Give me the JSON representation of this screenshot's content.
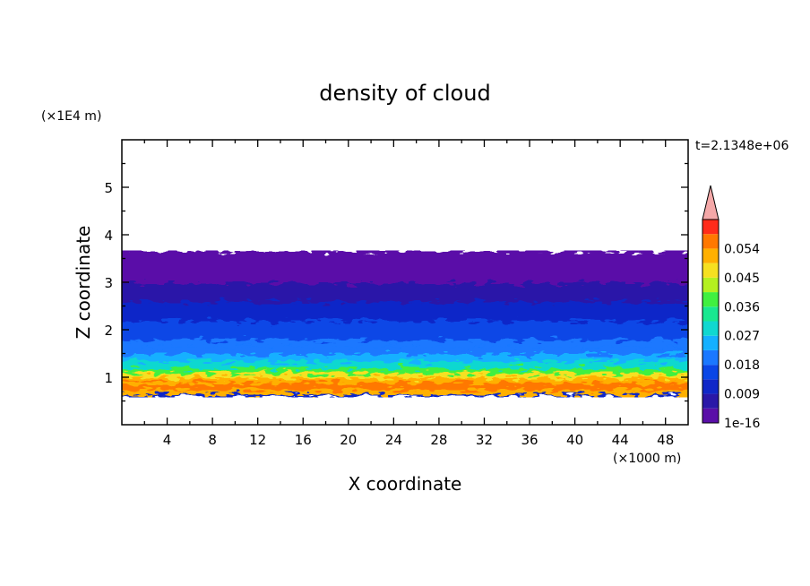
{
  "chart_data": {
    "type": "heatmap",
    "title": "density of cloud",
    "xlabel": "X coordinate",
    "ylabel": "Z coordinate",
    "x_unit": "(×1000 m)",
    "y_unit": "(×1E4 m)",
    "time_label": "t=2.1348e+06",
    "xlim": [
      0,
      50
    ],
    "ylim": [
      0,
      6
    ],
    "x_ticks": [
      4,
      8,
      12,
      16,
      20,
      24,
      28,
      32,
      36,
      40,
      44,
      48
    ],
    "y_ticks": [
      1,
      2,
      3,
      4,
      5
    ],
    "colorbar": {
      "levels": [
        1e-16,
        0.0045,
        0.009,
        0.0135,
        0.018,
        0.0225,
        0.027,
        0.0315,
        0.036,
        0.0405,
        0.045,
        0.0495,
        0.054,
        0.0585
      ],
      "labels": [
        "1e-16",
        "0.009",
        "0.018",
        "0.027",
        "0.036",
        "0.045",
        "0.054"
      ],
      "colors": [
        "#5a0fa8",
        "#2a18a8",
        "#1028c8",
        "#0a46e6",
        "#1a78ff",
        "#14b0ff",
        "#10d8d0",
        "#18e890",
        "#40f040",
        "#b4f020",
        "#f6e020",
        "#ffb000",
        "#ff7800",
        "#ff2c1a"
      ],
      "over_color": "#f4a8a8"
    },
    "vertical_profile": {
      "z": [
        0.6,
        0.65,
        0.75,
        0.9,
        1.0,
        1.1,
        1.2,
        1.35,
        1.5,
        1.65,
        1.8,
        2.0,
        2.2,
        2.4,
        2.6,
        2.8,
        3.0,
        3.3,
        3.65
      ],
      "density": [
        0.009,
        0.0495,
        0.058,
        0.0525,
        0.045,
        0.036,
        0.03,
        0.025,
        0.022,
        0.019,
        0.016,
        0.014,
        0.012,
        0.01,
        0.008,
        0.006,
        0.004,
        0.002,
        0.0005
      ]
    },
    "cloud_base_z": 0.6,
    "cloud_top_z": 3.65
  }
}
